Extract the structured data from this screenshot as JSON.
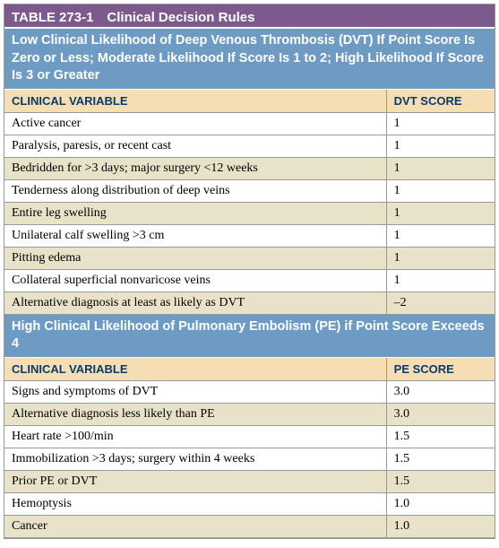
{
  "title": "TABLE 273-1 Clinical Decision Rules",
  "colors": {
    "title_bg": "#7c5a8e",
    "section_bg": "#6d9bc3",
    "header_row_bg": "#f5deb3",
    "alt_row_bg": "#e8e2c8",
    "header_text": "#0a3a6b",
    "border": "#999999"
  },
  "dvt": {
    "section_text": "Low Clinical Likelihood of Deep Venous Thrombosis (DVT) If Point Score Is Zero or Less; Moderate Likelihood If Score Is 1 to 2; High Likelihood If Score Is 3 or Greater",
    "col_variable": "CLINICAL VARIABLE",
    "col_score": "DVT SCORE",
    "rows": [
      {
        "variable": "Active cancer",
        "score": "1",
        "alt": false
      },
      {
        "variable": "Paralysis, paresis, or recent cast",
        "score": "1",
        "alt": false
      },
      {
        "variable": "Bedridden for >3 days; major surgery <12 weeks",
        "score": "1",
        "alt": true
      },
      {
        "variable": "Tenderness along distribution of deep veins",
        "score": "1",
        "alt": false
      },
      {
        "variable": "Entire leg swelling",
        "score": "1",
        "alt": true
      },
      {
        "variable": "Unilateral calf swelling >3 cm",
        "score": "1",
        "alt": false
      },
      {
        "variable": "Pitting edema",
        "score": "1",
        "alt": true
      },
      {
        "variable": "Collateral superficial nonvaricose veins",
        "score": "1",
        "alt": false
      },
      {
        "variable": "Alternative diagnosis at least as likely as DVT",
        "score": "–2",
        "alt": true
      }
    ]
  },
  "pe": {
    "section_text": "High Clinical Likelihood of Pulmonary Embolism (PE) if Point Score Exceeds 4",
    "col_variable": "CLINICAL VARIABLE",
    "col_score": "PE SCORE",
    "rows": [
      {
        "variable": "Signs and symptoms of DVT",
        "score": "3.0",
        "alt": false
      },
      {
        "variable": "Alternative diagnosis less likely than PE",
        "score": "3.0",
        "alt": true
      },
      {
        "variable": "Heart rate >100/min",
        "score": "1.5",
        "alt": false
      },
      {
        "variable": "Immobilization >3 days; surgery within 4 weeks",
        "score": "1.5",
        "alt": false
      },
      {
        "variable": "Prior PE or DVT",
        "score": "1.5",
        "alt": true
      },
      {
        "variable": "Hemoptysis",
        "score": "1.0",
        "alt": false
      },
      {
        "variable": "Cancer",
        "score": "1.0",
        "alt": true
      }
    ]
  }
}
